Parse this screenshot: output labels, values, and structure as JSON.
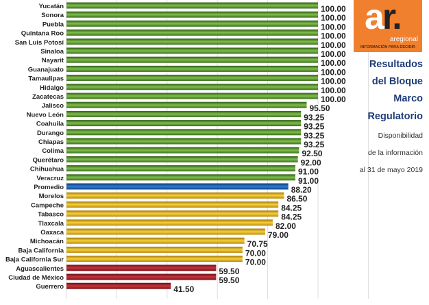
{
  "brand": {
    "logo_text": "ar.",
    "name": "aregional",
    "tagline": "INFORMACIÓN PARA DECIDIR"
  },
  "side": {
    "title_lines": [
      "Resultados",
      "del Bloque",
      "Marco",
      "Regulatorio"
    ],
    "subtitle_lines": [
      "Disponibilidad",
      "de la información",
      "al 31 de mayo 2019"
    ]
  },
  "colors": {
    "green": "#6aa63a",
    "blue": "#1f5fa8",
    "yellow": "#e6b21a",
    "red": "#a8202a"
  },
  "chart_data": {
    "type": "bar",
    "orientation": "horizontal",
    "xlim": [
      0,
      100
    ],
    "grid": true,
    "categories": [
      "Yucatán",
      "Sonora",
      "Puebla",
      "Quintana Roo",
      "San Luis Potosí",
      "Sinaloa",
      "Nayarit",
      "Guanajuato",
      "Tamaulipas",
      "Hidalgo",
      "Zacatecas",
      "Jalisco",
      "Nuevo León",
      "Coahuila",
      "Durango",
      "Chiapas",
      "Colima",
      "Querétaro",
      "Chihuahua",
      "Veracruz",
      "Promedio",
      "Morelos",
      "Campeche",
      "Tabasco",
      "Tlaxcala",
      "Oaxaca",
      "Michoacán",
      "Baja California",
      "Baja California Sur",
      "Aguascalientes",
      "Ciudad de México",
      "Guerrero"
    ],
    "values": [
      100,
      100,
      100,
      100,
      100,
      100,
      100,
      100,
      100,
      100,
      100,
      95.5,
      93.25,
      93.25,
      93.25,
      93.25,
      92.5,
      92,
      91,
      91,
      88.2,
      86.5,
      84.25,
      84.25,
      82,
      79,
      70.75,
      70,
      70,
      59.5,
      59.5,
      41.5
    ],
    "labels": [
      "100.00",
      "100.00",
      "100.00",
      "100.00",
      "100.00",
      "100.00",
      "100.00",
      "100.00",
      "100.00",
      "100.00",
      "100.00",
      "95.50",
      "93.25",
      "93.25",
      "93.25",
      "93.25",
      "92.50",
      "92.00",
      "91.00",
      "91.00",
      "88.20",
      "86.50",
      "84.25",
      "84.25",
      "82.00",
      "79.00",
      "70.75",
      "70.00",
      "70.00",
      "59.50",
      "59.50",
      "41.50"
    ],
    "color_groups": [
      "green",
      "green",
      "green",
      "green",
      "green",
      "green",
      "green",
      "green",
      "green",
      "green",
      "green",
      "green",
      "green",
      "green",
      "green",
      "green",
      "green",
      "green",
      "green",
      "green",
      "blue",
      "yellow",
      "yellow",
      "yellow",
      "yellow",
      "yellow",
      "yellow",
      "yellow",
      "yellow",
      "red",
      "red",
      "red"
    ]
  }
}
